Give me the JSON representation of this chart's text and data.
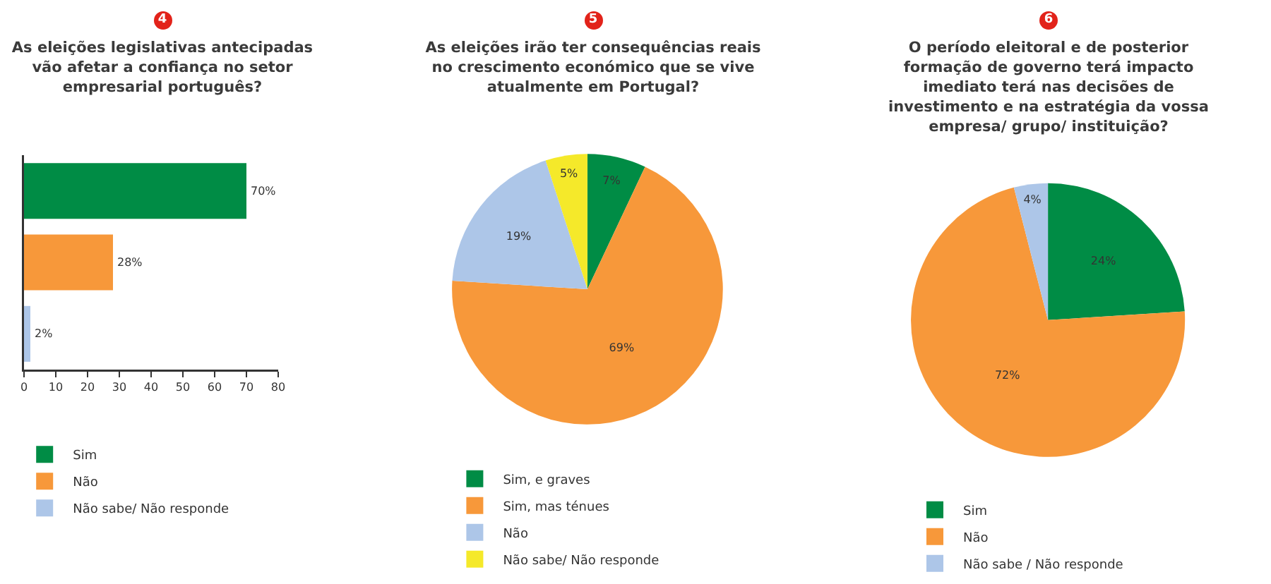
{
  "chart_data": [
    {
      "type": "bar",
      "orientation": "horizontal",
      "annotations": [
        "4"
      ],
      "title": "As eleições legislativas antecipadas vão afetar a confiança no setor empresarial português?",
      "categories": [
        null,
        null,
        null
      ],
      "series": [
        {
          "name": "Sim",
          "color": "#008c45",
          "values": [
            70,
            null,
            null
          ],
          "value_labels": [
            "70%",
            null,
            null
          ]
        },
        {
          "name": "Não",
          "color": "#f7983a",
          "values": [
            null,
            28,
            null
          ],
          "value_labels": [
            null,
            "28%",
            null
          ]
        },
        {
          "name": "Não sabe/ Não responde",
          "color": "#adc6e8",
          "values": [
            null,
            null,
            2
          ],
          "value_labels": [
            null,
            null,
            "2%"
          ]
        }
      ],
      "xlim": [
        0,
        80
      ],
      "xticks": [
        0,
        10,
        20,
        30,
        40,
        50,
        60,
        70,
        80
      ],
      "tick_labels": "x",
      "legend": "bottom left"
    },
    {
      "type": "pie",
      "annotations": [
        "5"
      ],
      "title": "As eleições irão ter consequências reais no crescimento económico que se vive atualmente em Portugal?",
      "categories": [
        "Sim, e graves",
        "Sim, mas ténues",
        "Não",
        "Não sabe/ Não responde"
      ],
      "values": [
        7,
        69,
        19,
        5
      ],
      "colors": [
        "#008c45",
        "#f7983a",
        "#adc6e8",
        "#f5e92a"
      ],
      "value_labels": [
        "7%",
        "69%",
        "19%",
        "5%"
      ],
      "legend": "bottom left"
    },
    {
      "type": "pie",
      "annotations": [
        "6"
      ],
      "title": "O período eleitoral e de posterior formação de governo terá impacto imediato terá nas decisões de investimento e na estratégia da vossa empresa/ grupo/ instituição?",
      "categories": [
        "Sim",
        "Não",
        "Não sabe / Não responde"
      ],
      "values": [
        24,
        72,
        4
      ],
      "colors": [
        "#008c45",
        "#f7983a",
        "#adc6e8"
      ],
      "value_labels": [
        "24%",
        "72%",
        "4%"
      ],
      "legend": "bottom left"
    }
  ]
}
